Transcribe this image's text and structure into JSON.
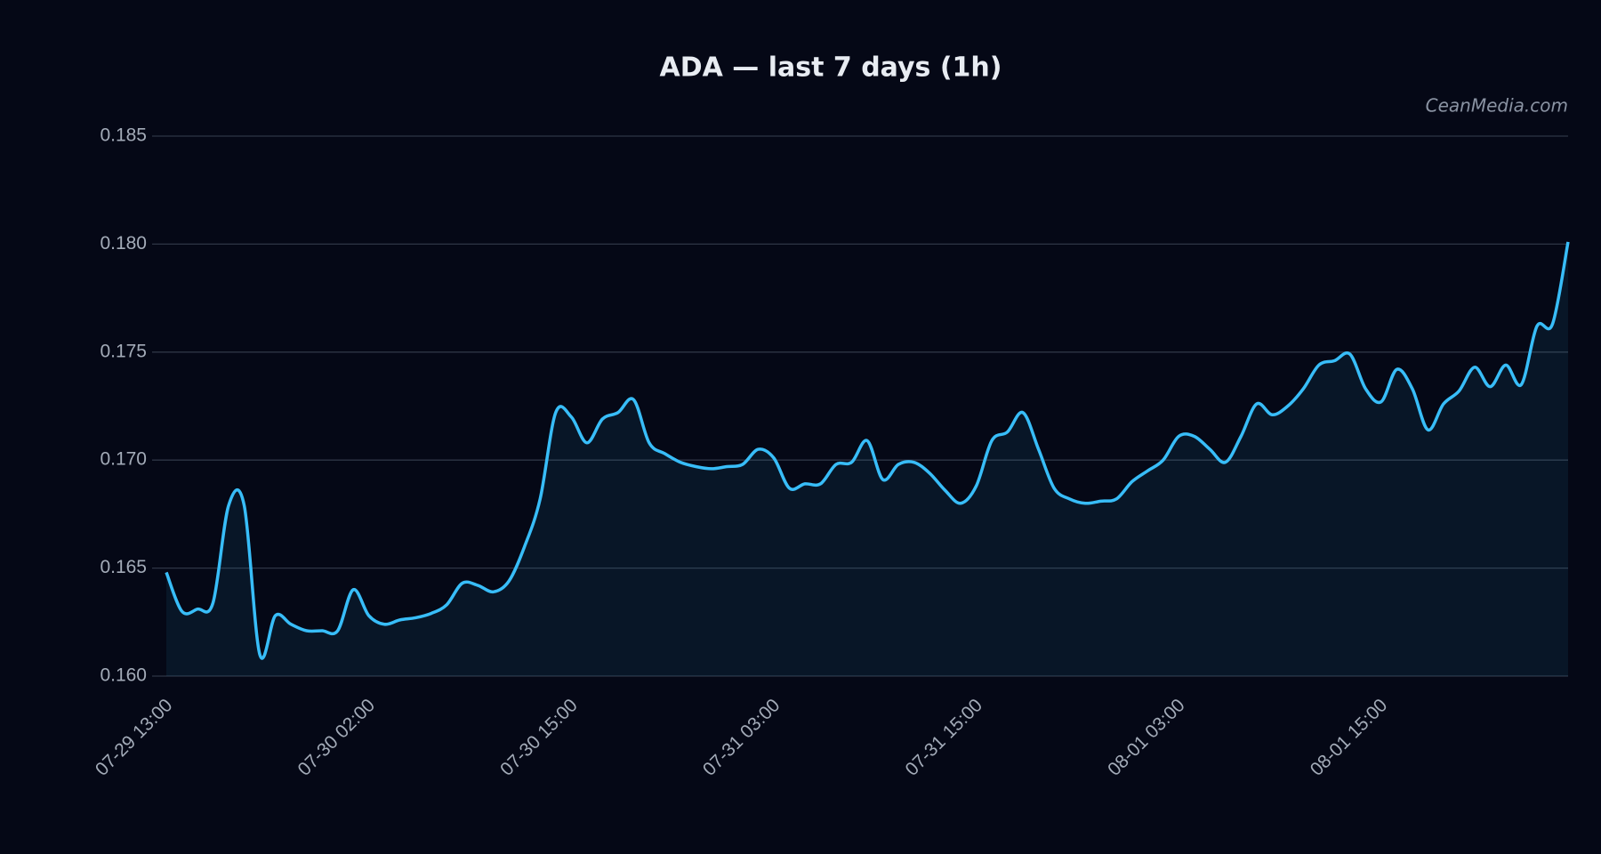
{
  "chart_data": {
    "type": "line",
    "title": "ADA — last 7 days (1h)",
    "watermark": "CeanMedia.com",
    "categories": [
      "07-29 13:00",
      null,
      null,
      null,
      null,
      null,
      null,
      null,
      null,
      null,
      null,
      null,
      null,
      "07-30 02:00",
      null,
      null,
      null,
      null,
      null,
      null,
      null,
      null,
      null,
      null,
      null,
      null,
      "07-30 15:00",
      null,
      null,
      null,
      null,
      null,
      null,
      null,
      null,
      null,
      null,
      null,
      null,
      "07-31 03:00",
      null,
      null,
      null,
      null,
      null,
      null,
      null,
      null,
      null,
      null,
      null,
      null,
      "07-31 15:00",
      null,
      null,
      null,
      null,
      null,
      null,
      null,
      null,
      null,
      null,
      null,
      null,
      "08-01 03:00",
      null,
      null,
      null,
      null,
      null,
      null,
      null,
      null,
      null,
      null,
      null,
      null,
      "08-01 15:00",
      null,
      null,
      null,
      null,
      null,
      null,
      null,
      null,
      null,
      null,
      null,
      null
    ],
    "values": [
      0.1648,
      0.163,
      0.1631,
      0.1634,
      0.1679,
      0.1679,
      0.161,
      0.1628,
      0.1624,
      0.1621,
      0.1621,
      0.1621,
      0.164,
      0.1628,
      0.1624,
      0.1626,
      0.1627,
      0.1629,
      0.1633,
      0.1643,
      0.1642,
      0.1639,
      0.1644,
      0.166,
      0.1682,
      0.1722,
      0.172,
      0.1708,
      0.1719,
      0.1722,
      0.1728,
      0.1708,
      0.1703,
      0.1699,
      0.1697,
      0.1696,
      0.1697,
      0.1698,
      0.1705,
      0.1701,
      0.1687,
      0.1689,
      0.1689,
      0.1698,
      0.1699,
      0.1709,
      0.1691,
      0.1698,
      0.1699,
      0.1694,
      0.1686,
      0.168,
      0.1688,
      0.1709,
      0.1713,
      0.1722,
      0.1705,
      0.1687,
      0.1682,
      0.168,
      0.1681,
      0.1682,
      0.169,
      0.1695,
      0.17,
      0.1711,
      0.1711,
      0.1705,
      0.1699,
      0.1711,
      0.1726,
      0.1721,
      0.1725,
      0.1733,
      0.1744,
      0.1746,
      0.1749,
      0.1733,
      0.1727,
      0.1742,
      0.1733,
      0.1714,
      0.1726,
      0.1732,
      0.1743,
      0.1734,
      0.1744,
      0.1735,
      0.1762,
      0.1763,
      0.1801
    ],
    "color": "#38bdf8",
    "area": true,
    "grid": true,
    "ylim": [
      0.16,
      0.185
    ],
    "yticks": [
      {
        "value": 0.16,
        "label": "0.160"
      },
      0.165,
      {
        "value": 0.17,
        "label": "0.170"
      },
      0.175,
      {
        "value": 0.18,
        "label": "0.180"
      },
      0.185
    ]
  }
}
